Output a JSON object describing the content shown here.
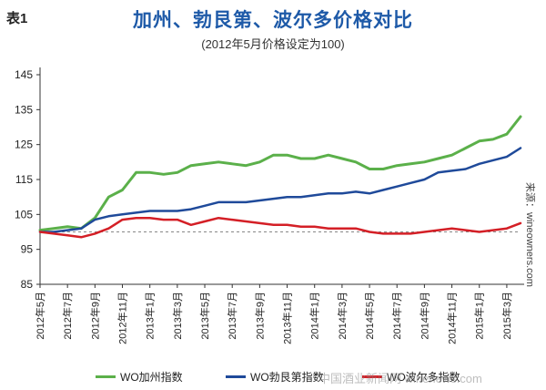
{
  "table_label": "表1",
  "title": "加州、勃艮第、波尔多价格对比",
  "subtitle": "(2012年5月价格设定为100)",
  "source_text": "来源：wineowners.com",
  "watermark": "中国酒业新闻网 winenews.com",
  "colors": {
    "green": "#5bb04a",
    "blue": "#1f4a9a",
    "red": "#d41f26",
    "baseline": "#888888",
    "axis": "#333333"
  },
  "chart_data": {
    "type": "line",
    "title": "加州、勃艮第、波尔多价格对比",
    "subtitle": "(2012年5月价格设定为100)",
    "xlabel": "",
    "ylabel": "",
    "ylim": [
      85,
      145
    ],
    "yticks": [
      85,
      95,
      105,
      115,
      125,
      135,
      145
    ],
    "grid": false,
    "reference_line": 100,
    "x": [
      "2012年5月",
      "2012年6月",
      "2012年7月",
      "2012年8月",
      "2012年9月",
      "2012年10月",
      "2012年11月",
      "2012年12月",
      "2013年1月",
      "2013年2月",
      "2013年3月",
      "2013年4月",
      "2013年5月",
      "2013年6月",
      "2013年7月",
      "2013年8月",
      "2013年9月",
      "2013年10月",
      "2013年11月",
      "2013年12月",
      "2014年1月",
      "2014年2月",
      "2014年3月",
      "2014年4月",
      "2014年5月",
      "2014年6月",
      "2014年7月",
      "2014年8月",
      "2014年9月",
      "2014年10月",
      "2014年11月",
      "2014年12月",
      "2015年1月",
      "2015年2月",
      "2015年3月",
      "2015年4月"
    ],
    "xtick_labels": [
      "2012年5月",
      "2012年7月",
      "2012年9月",
      "2012年11月",
      "2013年1月",
      "2013年3月",
      "2013年5月",
      "2013年7月",
      "2013年9月",
      "2013年11月",
      "2014年1月",
      "2014年3月",
      "2014年5月",
      "2014年7月",
      "2014年9月",
      "2014年11月",
      "2015年1月",
      "2015年3月"
    ],
    "series": [
      {
        "name": "WO加州指数",
        "color": "#5bb04a",
        "values": [
          100.5,
          101,
          101.5,
          101,
          104,
          110,
          112,
          117,
          117,
          116.5,
          117,
          119,
          119.5,
          120,
          119.5,
          119,
          120,
          122,
          122,
          121,
          121,
          122,
          121,
          120,
          118,
          118,
          119,
          119.5,
          120,
          121,
          122,
          124,
          126,
          126.5,
          128,
          133
        ]
      },
      {
        "name": "WO勃艮第指数",
        "color": "#1f4a9a",
        "values": [
          100,
          100,
          100.5,
          101,
          103.5,
          104.5,
          105,
          105.5,
          106,
          106,
          106,
          106.5,
          107.5,
          108.5,
          108.5,
          108.5,
          109,
          109.5,
          110,
          110,
          110.5,
          111,
          111,
          111.5,
          111,
          112,
          113,
          114,
          115,
          117,
          117.5,
          118,
          119.5,
          120.5,
          121.5,
          124
        ]
      },
      {
        "name": "WO波尔多指数",
        "color": "#d41f26",
        "values": [
          100,
          99.5,
          99,
          98.5,
          99.5,
          101,
          103.5,
          104,
          104,
          103.5,
          103.5,
          102,
          103,
          104,
          103.5,
          103,
          102.5,
          102,
          102,
          101.5,
          101.5,
          101,
          101,
          101,
          100,
          99.5,
          99.5,
          99.5,
          100,
          100.5,
          101,
          100.5,
          100,
          100.5,
          101,
          102.5
        ]
      }
    ]
  },
  "legend": [
    {
      "label": "WO加州指数",
      "color": "#5bb04a"
    },
    {
      "label": "WO勃艮第指数",
      "color": "#1f4a9a"
    },
    {
      "label": "WO波尔多指数",
      "color": "#d41f26"
    }
  ]
}
